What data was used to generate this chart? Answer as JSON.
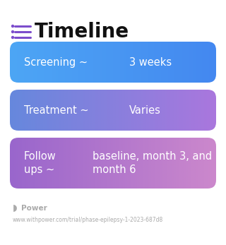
{
  "title": "Timeline",
  "title_icon_color": "#7c4dcc",
  "title_fontsize": 20,
  "title_fontweight": "bold",
  "background_color": "#ffffff",
  "boxes": [
    {
      "label": "Screening ~",
      "value": "3 weeks",
      "color_left": "#4da6f5",
      "color_right": "#4488f0",
      "text_color": "#ffffff",
      "multiline_label": false,
      "multiline_value": false
    },
    {
      "label": "Treatment ~",
      "value": "Varies",
      "color_left": "#6688dd",
      "color_right": "#aa77dd",
      "text_color": "#ffffff",
      "multiline_label": false,
      "multiline_value": false
    },
    {
      "label": "Follow\nups ~",
      "value": "baseline, month 3, and\nmonth 6",
      "color_left": "#9966cc",
      "color_right": "#cc88cc",
      "text_color": "#ffffff",
      "multiline_label": true,
      "multiline_value": true
    }
  ],
  "footer_logo_color": "#aaaaaa",
  "footer_text": "Power",
  "footer_url": "www.withpower.com/trial/phase-epilepsy-1-2023-687d8",
  "footer_fontsize": 7.5,
  "footer_url_fontsize": 5.5
}
